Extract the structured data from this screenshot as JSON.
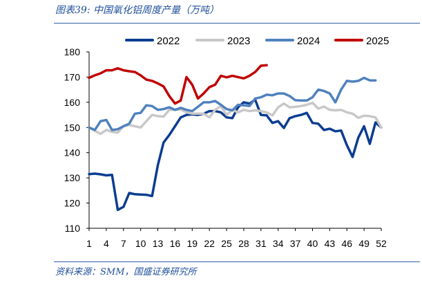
{
  "figure": {
    "title": "图表39:  中国氧化铝周度产量（万吨）",
    "source": "资料来源：SMM，国盛证券研究所"
  },
  "chart_data": {
    "type": "line",
    "title": "",
    "xlabel": "",
    "ylabel": "",
    "xlim": [
      1,
      52
    ],
    "ylim": [
      110,
      180
    ],
    "x_ticks": [
      1,
      4,
      7,
      10,
      13,
      16,
      19,
      22,
      25,
      28,
      31,
      34,
      37,
      40,
      43,
      46,
      49,
      52
    ],
    "y_ticks": [
      110,
      120,
      130,
      140,
      150,
      160,
      170,
      180
    ],
    "grid": false,
    "legend_position": "top",
    "x": [
      1,
      2,
      3,
      4,
      5,
      6,
      7,
      8,
      9,
      10,
      11,
      12,
      13,
      14,
      15,
      16,
      17,
      18,
      19,
      20,
      21,
      22,
      23,
      24,
      25,
      26,
      27,
      28,
      29,
      30,
      31,
      32,
      33,
      34,
      35,
      36,
      37,
      38,
      39,
      40,
      41,
      42,
      43,
      44,
      45,
      46,
      47,
      48,
      49,
      50,
      51,
      52
    ],
    "series": [
      {
        "name": "2022",
        "color": "#0b3d91",
        "values": [
          131.5,
          131.7,
          131.4,
          131.0,
          131.2,
          117.3,
          118.5,
          124.0,
          123.5,
          123.4,
          123.3,
          122.8,
          135.0,
          144.0,
          147.0,
          150.5,
          154.0,
          155.0,
          155.2,
          155.0,
          155.5,
          156.5,
          156.5,
          156.0,
          154.0,
          153.7,
          158.0,
          160.0,
          159.5,
          161.0,
          155.0,
          154.8,
          151.8,
          152.5,
          149.8,
          153.7,
          154.5,
          155.0,
          155.8,
          151.8,
          151.5,
          149.0,
          149.5,
          148.5,
          148.8,
          143.0,
          138.3,
          146.0,
          150.5,
          143.5,
          152.0,
          150.0
        ]
      },
      {
        "name": "2023",
        "color": "#c8c8c8",
        "values": [
          150.0,
          148.7,
          147.5,
          149.0,
          148.3,
          148.0,
          150.5,
          151.0,
          150.5,
          150.0,
          152.5,
          155.0,
          154.5,
          154.3,
          157.0,
          157.0,
          157.2,
          156.0,
          155.5,
          155.5,
          155.5,
          154.0,
          157.0,
          158.5,
          155.0,
          157.0,
          156.0,
          157.0,
          156.5,
          156.8,
          156.5,
          156.0,
          154.8,
          158.0,
          159.5,
          158.0,
          158.2,
          158.5,
          159.0,
          159.8,
          157.5,
          158.3,
          157.0,
          156.8,
          157.0,
          156.0,
          155.5,
          153.8,
          154.7,
          154.5,
          154.0,
          150.0
        ]
      },
      {
        "name": "2024",
        "color": "#4f81bd",
        "values": [
          150.0,
          149.0,
          152.5,
          153.0,
          149.0,
          149.3,
          150.5,
          151.5,
          155.5,
          155.8,
          158.8,
          158.5,
          157.0,
          157.3,
          158.0,
          157.0,
          157.8,
          157.0,
          156.5,
          158.2,
          160.0,
          160.0,
          160.5,
          159.0,
          157.3,
          156.8,
          159.0,
          158.8,
          158.5,
          161.5,
          162.0,
          163.0,
          162.8,
          163.5,
          163.5,
          162.5,
          160.8,
          160.7,
          160.7,
          162.0,
          165.0,
          164.5,
          163.5,
          160.0,
          165.0,
          168.5,
          168.2,
          168.5,
          169.7,
          168.7,
          168.7,
          null
        ]
      },
      {
        "name": "2025",
        "color": "#c00000",
        "values": [
          169.7,
          170.7,
          171.5,
          172.7,
          172.7,
          173.5,
          172.7,
          172.3,
          172.0,
          170.7,
          169.0,
          168.5,
          167.5,
          166.3,
          162.5,
          159.5,
          160.7,
          170.0,
          167.0,
          161.5,
          163.5,
          166.0,
          167.0,
          170.5,
          169.9,
          170.5,
          170.0,
          169.5,
          170.5,
          172.0,
          174.5,
          174.7,
          null,
          null,
          null,
          null,
          null,
          null,
          null,
          null,
          null,
          null,
          null,
          null,
          null,
          null,
          null,
          null,
          null,
          null,
          null,
          null
        ]
      }
    ]
  }
}
